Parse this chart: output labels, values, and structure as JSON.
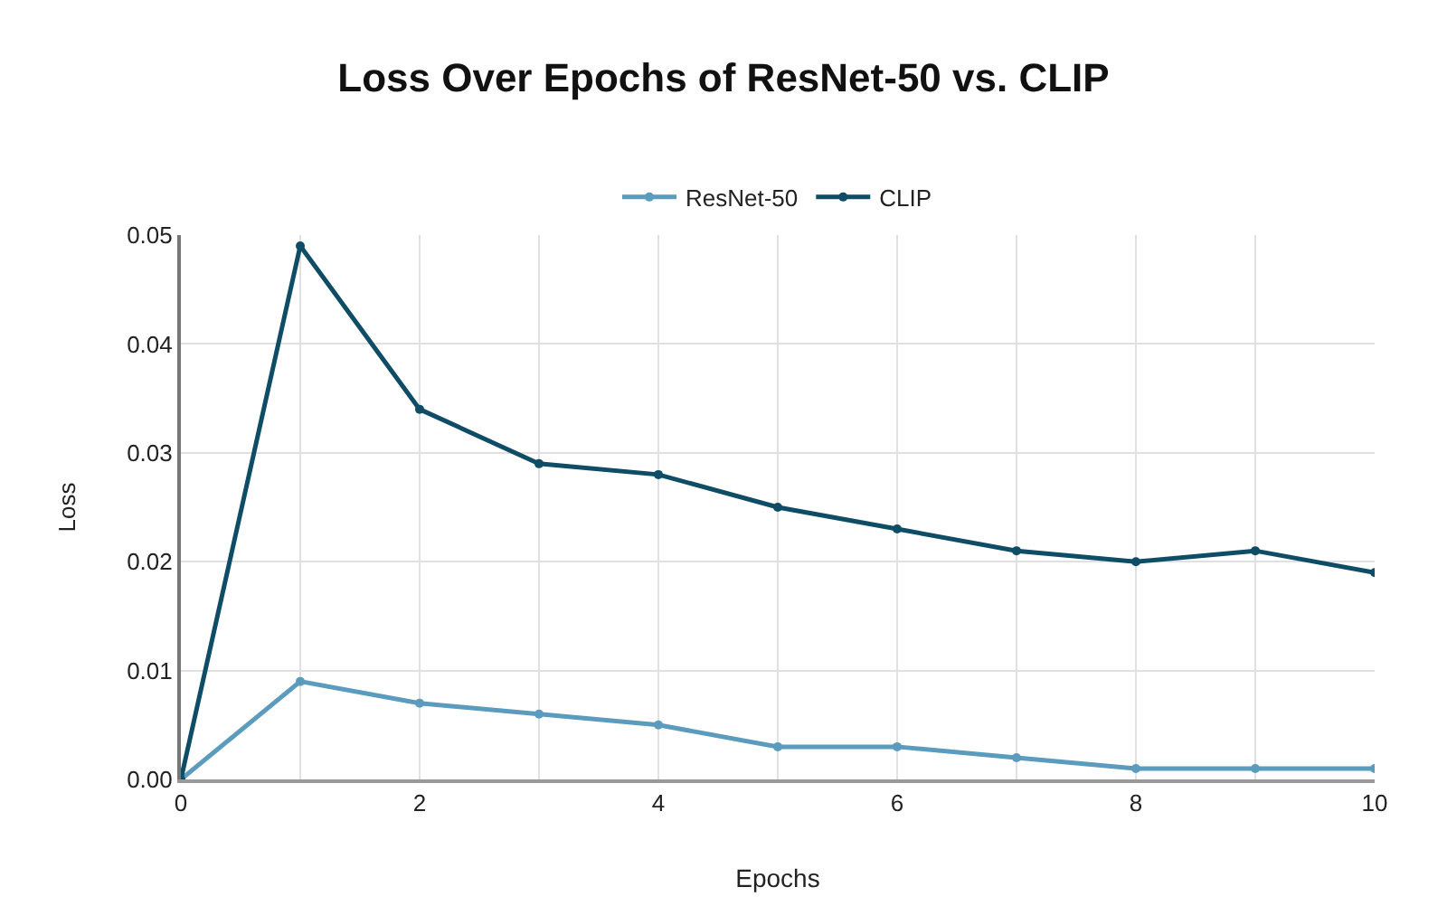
{
  "chart_data": {
    "type": "line",
    "title": "Loss Over Epochs of ResNet-50 vs. CLIP",
    "xlabel": "Epochs",
    "ylabel": "Loss",
    "x": [
      0,
      1,
      2,
      3,
      4,
      5,
      6,
      7,
      8,
      9,
      10
    ],
    "series": [
      {
        "name": "ResNet-50",
        "color": "#5b9bbd",
        "values": [
          0,
          0.009,
          0.007,
          0.006,
          0.005,
          0.003,
          0.003,
          0.002,
          0.001,
          0.001,
          0.001
        ]
      },
      {
        "name": "CLIP",
        "color": "#0f4c66",
        "values": [
          0,
          0.049,
          0.034,
          0.029,
          0.028,
          0.025,
          0.023,
          0.021,
          0.02,
          0.021,
          0.019
        ]
      }
    ],
    "xlim": [
      0,
      10
    ],
    "xticks": [
      0,
      {
        "value": 1,
        "label": null
      },
      2,
      {
        "value": 3,
        "label": null
      },
      4,
      {
        "value": 5,
        "label": null
      },
      6,
      {
        "value": 7,
        "label": null
      },
      8,
      {
        "value": 9,
        "label": null
      },
      10
    ],
    "ylim": [
      0,
      0.05
    ],
    "yticks": [
      {
        "value": 0,
        "label": "0.00"
      },
      {
        "value": 0.01,
        "label": "0.01"
      },
      {
        "value": 0.02,
        "label": "0.02"
      },
      {
        "value": 0.03,
        "label": "0.03"
      },
      {
        "value": 0.04,
        "label": "0.04"
      },
      {
        "value": 0.05,
        "label": "0.05"
      }
    ],
    "grid": true,
    "legend": "top",
    "marker": "circle",
    "line_style": "solid"
  }
}
